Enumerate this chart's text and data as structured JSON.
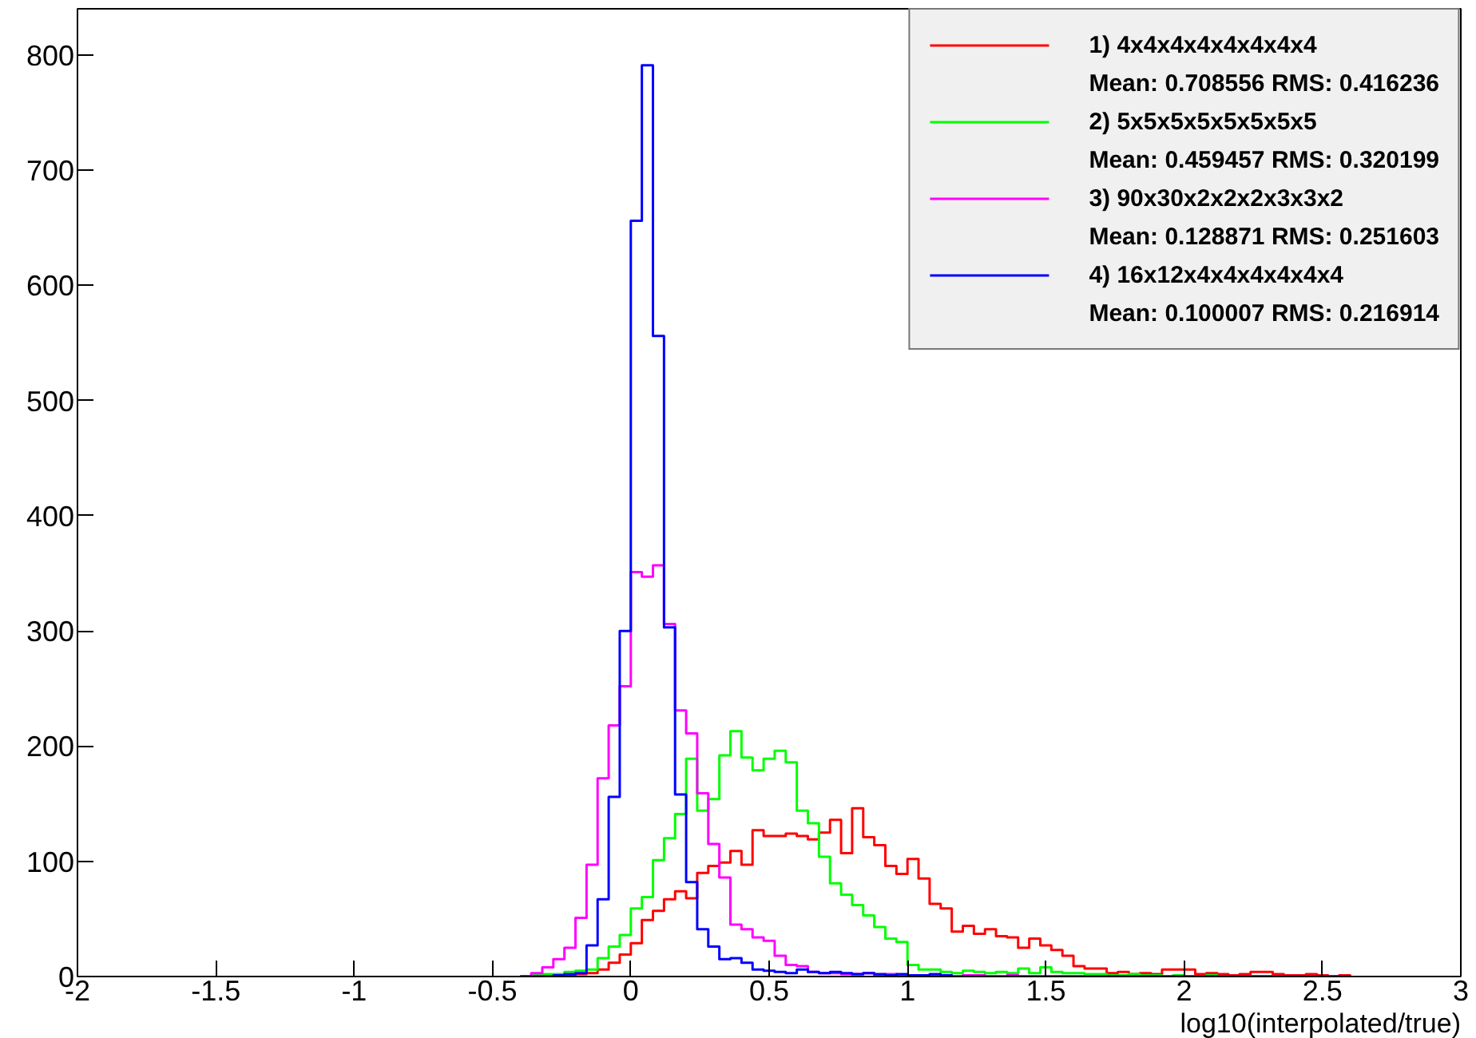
{
  "chart_data": {
    "type": "histogram",
    "xlabel": "log10(interpolated/true)",
    "bins": [
      -0.4,
      -0.36,
      -0.32,
      -0.28,
      -0.24,
      -0.2,
      -0.16,
      -0.12,
      -0.08,
      -0.04,
      0.0,
      0.04,
      0.08,
      0.12,
      0.16,
      0.2,
      0.24,
      0.28,
      0.32,
      0.36,
      0.4,
      0.44,
      0.48,
      0.52,
      0.56,
      0.6,
      0.64,
      0.68,
      0.72,
      0.76,
      0.8,
      0.84,
      0.88,
      0.92,
      0.96,
      1.0,
      1.04,
      1.08,
      1.12,
      1.16,
      1.2,
      1.24,
      1.28,
      1.32,
      1.36,
      1.4,
      1.44,
      1.48,
      1.52,
      1.56,
      1.6,
      1.64,
      1.68,
      1.72,
      1.76,
      1.8,
      1.84,
      1.88,
      1.92,
      1.96,
      2.0,
      2.04,
      2.08,
      2.12,
      2.16,
      2.2,
      2.24,
      2.28,
      2.32,
      2.36,
      2.4,
      2.44,
      2.48,
      2.52,
      2.56,
      2.6
    ],
    "series": [
      {
        "name": "1) 4x4x4x4x4x4x4x4",
        "color": "#ff0000",
        "values": [
          0,
          0,
          1,
          1,
          1,
          2,
          3,
          6,
          12,
          19,
          29,
          49,
          57,
          67,
          74,
          68,
          90,
          96,
          99,
          109,
          97,
          127,
          122,
          122,
          124,
          122,
          119,
          125,
          136,
          107,
          146,
          121,
          114,
          96,
          89,
          102,
          85,
          63,
          59,
          39,
          44,
          37,
          41,
          35,
          34,
          25,
          33,
          27,
          23,
          18,
          9,
          7,
          7,
          3,
          4,
          2,
          3,
          2,
          6,
          6,
          6,
          2,
          3,
          2,
          1,
          2,
          4,
          4,
          2,
          1,
          1,
          2,
          1,
          0,
          1
        ]
      },
      {
        "name": "2) 5x5x5x5x5x5x5x5",
        "color": "#00ff00",
        "values": [
          0,
          1,
          2,
          2,
          4,
          5,
          6,
          16,
          26,
          36,
          59,
          69,
          101,
          120,
          141,
          189,
          144,
          154,
          192,
          213,
          190,
          179,
          189,
          196,
          186,
          144,
          133,
          104,
          81,
          71,
          62,
          53,
          43,
          33,
          30,
          10,
          6,
          6,
          4,
          3,
          5,
          4,
          3,
          4,
          3,
          7,
          3,
          8,
          4,
          3,
          3,
          2,
          2,
          1,
          1,
          2,
          1,
          1,
          0,
          1,
          0,
          0,
          1,
          0,
          0,
          0,
          0,
          0,
          0,
          0,
          0,
          0,
          0,
          0,
          0
        ]
      },
      {
        "name": "3) 90x30x2x2x2x3x3x2",
        "color": "#ff00ff",
        "values": [
          0,
          3,
          8,
          15,
          25,
          51,
          97,
          172,
          218,
          252,
          351,
          347,
          357,
          306,
          231,
          211,
          159,
          115,
          86,
          45,
          41,
          34,
          31,
          18,
          10,
          9,
          4,
          3,
          3,
          2,
          2,
          3,
          1,
          2,
          1,
          1,
          1,
          1,
          1,
          0,
          1,
          1,
          0,
          0,
          1,
          0,
          0,
          0,
          0,
          0,
          0,
          0,
          0,
          0,
          0,
          0,
          0,
          0,
          0,
          0,
          0,
          0,
          0,
          0,
          0,
          0,
          0,
          0,
          0,
          0,
          0,
          0,
          0,
          0,
          0
        ]
      },
      {
        "name": "4) 16x12x4x4x4x4x4x4",
        "color": "#0000ff",
        "values": [
          0,
          0,
          0,
          1,
          2,
          3,
          27,
          67,
          156,
          300,
          656,
          791,
          556,
          303,
          158,
          82,
          41,
          26,
          15,
          16,
          12,
          6,
          5,
          4,
          3,
          6,
          4,
          3,
          4,
          3,
          2,
          3,
          2,
          1,
          2,
          1,
          1,
          2,
          1,
          0,
          0,
          0,
          0,
          0,
          0,
          0,
          0,
          0,
          0,
          0,
          0,
          0,
          0,
          0,
          0,
          0,
          0,
          0,
          0,
          0,
          0,
          0,
          0,
          0,
          0,
          0,
          0,
          0,
          0,
          0,
          0,
          0,
          0,
          0,
          0
        ]
      }
    ],
    "annotations": [
      "Mean: 0.708556 RMS: 0.416236",
      "Mean: 0.459457 RMS: 0.320199",
      "Mean: 0.128871 RMS: 0.251603",
      "Mean: 0.100007 RMS: 0.216914"
    ],
    "xlim": [
      -2,
      3
    ],
    "ylim": [
      0,
      840
    ],
    "xticks": [
      -2,
      -1.5,
      -1,
      -0.5,
      0,
      0.5,
      1,
      1.5,
      2,
      2.5,
      3
    ],
    "yticks": [
      0,
      100,
      200,
      300,
      400,
      500,
      600,
      700,
      800
    ],
    "legend": "top right"
  }
}
